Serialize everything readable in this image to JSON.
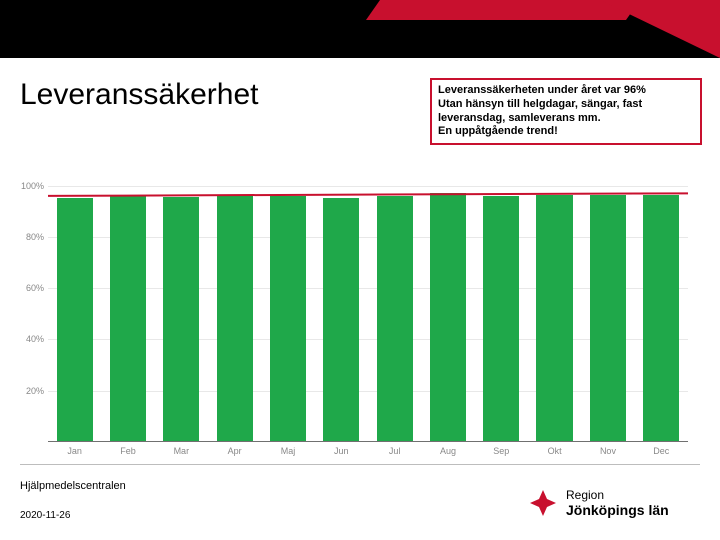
{
  "title": "Leveranssäkerhet",
  "note": {
    "line1": "Leveranssäkerheten under året var 96%",
    "line2": "Utan hänsyn till helgdagar, sängar, fast",
    "line3": "leveransdag, samleverans mm.",
    "line4": "En uppåtgående trend!",
    "border_color": "#c8102e"
  },
  "chart": {
    "type": "bar",
    "categories": [
      "Jan",
      "Feb",
      "Mar",
      "Apr",
      "Maj",
      "Jun",
      "Jul",
      "Aug",
      "Sep",
      "Okt",
      "Nov",
      "Dec"
    ],
    "values": [
      95,
      96,
      95.5,
      96,
      96,
      95,
      96,
      97,
      96,
      96.5,
      96.5,
      96.5
    ],
    "bar_color": "#1fa84a",
    "trend": {
      "start": 96,
      "end": 97,
      "color": "#c8102e",
      "width": 2
    },
    "ylim": [
      0,
      110
    ],
    "yticks": [
      20,
      40,
      60,
      80,
      100
    ],
    "ytick_labels": [
      "20%",
      "40%",
      "60%",
      "80%",
      "100%"
    ],
    "grid_color": "#e8e8e8",
    "axis_color": "#707070",
    "axis_label_color": "#888888",
    "axis_label_fontsize": 9,
    "background_color": "#ffffff",
    "bar_width": 0.68
  },
  "footer": {
    "source": "Hjälpmedelscentralen",
    "date": "2020-11-26"
  },
  "logo": {
    "line1": "Region",
    "line2": "Jönköpings län",
    "mark_color": "#c8102e"
  },
  "header": {
    "background": "#000000",
    "accent": "#c8102e"
  }
}
